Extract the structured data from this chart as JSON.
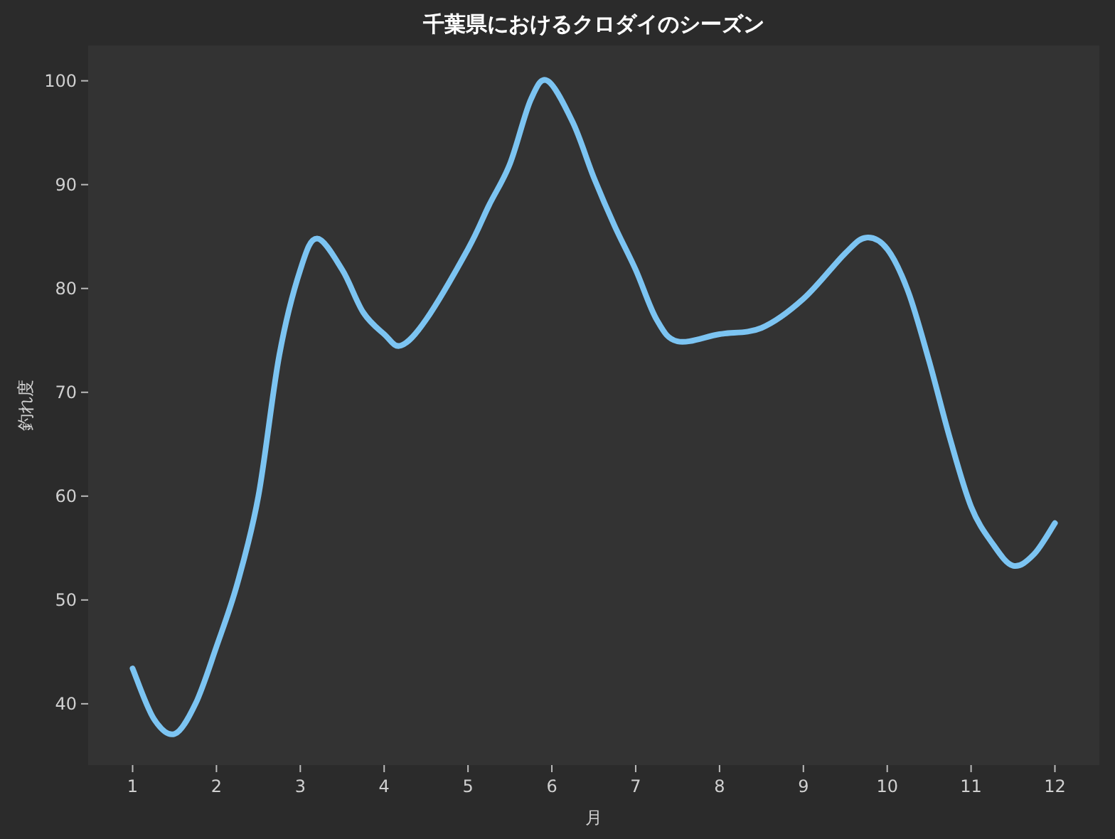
{
  "chart_data": {
    "type": "line",
    "title": "千葉県におけるクロダイのシーズン",
    "xlabel": "月",
    "ylabel": "釣れ度",
    "x": [
      1,
      1.25,
      1.5,
      1.75,
      2,
      2.25,
      2.5,
      2.75,
      3,
      3.2,
      3.5,
      3.75,
      4,
      4.2,
      4.5,
      5,
      5.25,
      5.5,
      5.75,
      5.95,
      6.25,
      6.5,
      6.75,
      7,
      7.25,
      7.5,
      8,
      8.5,
      9,
      9.5,
      9.75,
      10,
      10.25,
      10.5,
      10.75,
      11,
      11.25,
      11.5,
      11.75,
      12
    ],
    "series": [
      {
        "color": "#7cc4f2",
        "values": [
          43.4,
          38.6,
          37.1,
          40,
          45.5,
          51.6,
          60,
          73.6,
          81.8,
          84.8,
          81.8,
          77.7,
          75.6,
          74.5,
          77,
          83.8,
          88,
          92,
          98.2,
          100,
          96,
          90.7,
          86,
          81.8,
          77,
          74.9,
          75.6,
          76.2,
          79,
          83.4,
          84.9,
          83.8,
          79.7,
          73,
          65.5,
          59,
          55.5,
          53.3,
          54.4,
          57.4
        ]
      }
    ],
    "xlim": [
      0.47,
      12.53
    ],
    "ylim": [
      34.1,
      103.4
    ],
    "xticks": [
      1,
      2,
      3,
      4,
      5,
      6,
      7,
      8,
      9,
      10,
      11,
      12
    ],
    "yticks": [
      40,
      50,
      60,
      70,
      80,
      90,
      100
    ],
    "grid": false,
    "marker": "none",
    "line_style": "solid"
  }
}
